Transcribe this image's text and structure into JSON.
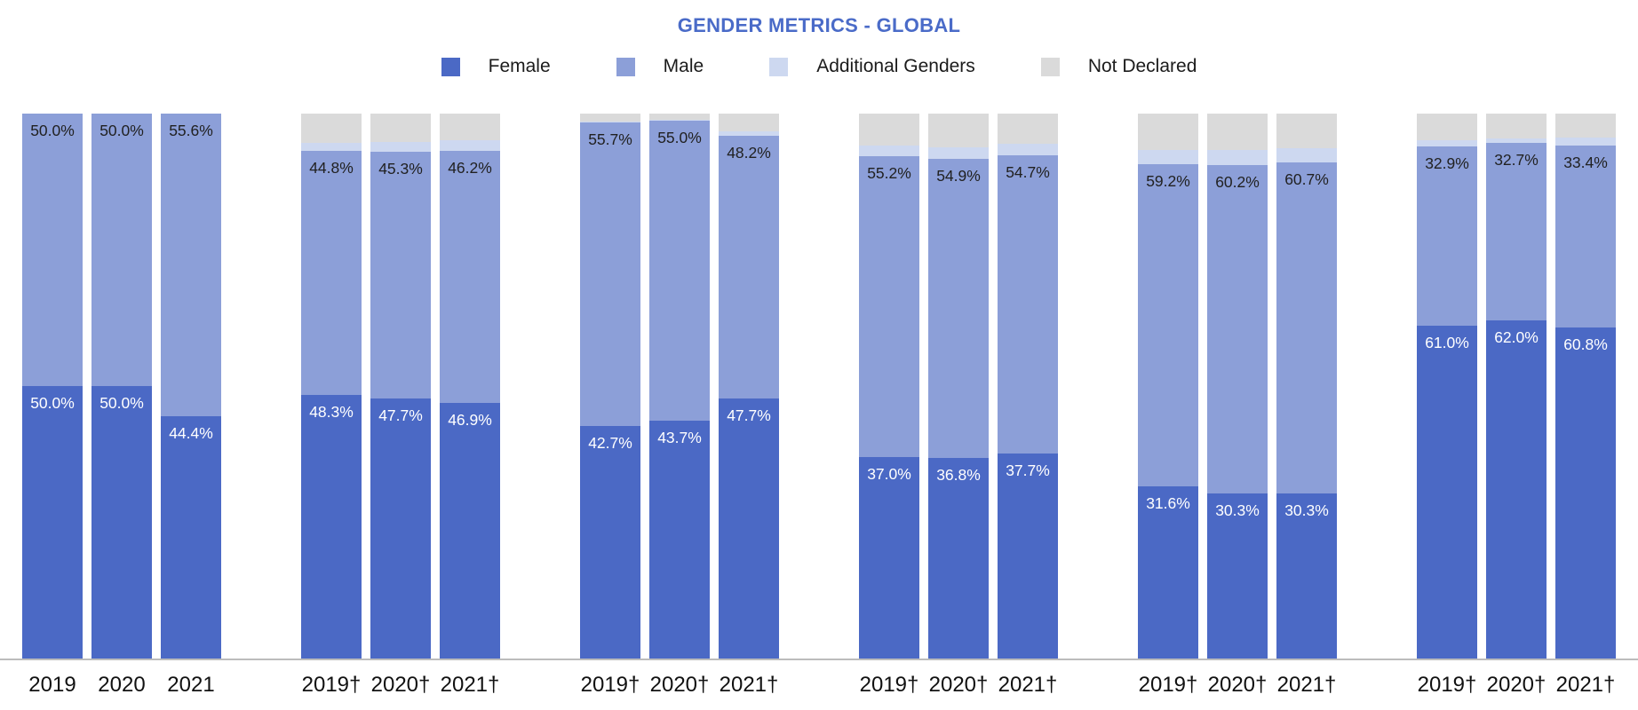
{
  "chart_data": {
    "type": "bar",
    "variant": "stacked-100-percent",
    "title": "GENDER METRICS - GLOBAL",
    "title_color": "#4a6bc8",
    "legend_position": "top",
    "grid": false,
    "ylim": [
      0,
      100
    ],
    "unit": "%",
    "axis_line_color": "#bcbcbc",
    "stack_order_bottom_to_top": [
      "female",
      "male",
      "additional",
      "not_declared"
    ],
    "labeled_series": [
      "female",
      "male"
    ],
    "label_text_colors": {
      "female": "#ffffff",
      "male": "#212121"
    },
    "legend": [
      {
        "key": "female",
        "label": "Female",
        "color": "#4b69c5"
      },
      {
        "key": "male",
        "label": "Male",
        "color": "#8c9fd8"
      },
      {
        "key": "additional",
        "label": "Additional Genders",
        "color": "#cdd8f0"
      },
      {
        "key": "not_declared",
        "label": "Not Declared",
        "color": "#dadada"
      }
    ],
    "groups": [
      {
        "bars": [
          {
            "label": "2019",
            "female": 50.0,
            "male": 50.0,
            "additional": 0.0,
            "not_declared": 0.0
          },
          {
            "label": "2020",
            "female": 50.0,
            "male": 50.0,
            "additional": 0.0,
            "not_declared": 0.0
          },
          {
            "label": "2021",
            "female": 44.4,
            "male": 55.6,
            "additional": 0.0,
            "not_declared": 0.0
          }
        ]
      },
      {
        "bars": [
          {
            "label": "2019†",
            "female": 48.3,
            "male": 44.8,
            "additional": 1.6,
            "not_declared": 5.3
          },
          {
            "label": "2020†",
            "female": 47.7,
            "male": 45.3,
            "additional": 1.8,
            "not_declared": 5.2
          },
          {
            "label": "2021†",
            "female": 46.9,
            "male": 46.2,
            "additional": 2.0,
            "not_declared": 4.9
          }
        ]
      },
      {
        "bars": [
          {
            "label": "2019†",
            "female": 42.7,
            "male": 55.7,
            "additional": 0.2,
            "not_declared": 1.4
          },
          {
            "label": "2020†",
            "female": 43.7,
            "male": 55.0,
            "additional": 0.2,
            "not_declared": 1.1
          },
          {
            "label": "2021†",
            "female": 47.7,
            "male": 48.2,
            "additional": 0.8,
            "not_declared": 3.3
          }
        ]
      },
      {
        "bars": [
          {
            "label": "2019†",
            "female": 37.0,
            "male": 55.2,
            "additional": 1.9,
            "not_declared": 5.9
          },
          {
            "label": "2020†",
            "female": 36.8,
            "male": 54.9,
            "additional": 2.1,
            "not_declared": 6.2
          },
          {
            "label": "2021†",
            "female": 37.7,
            "male": 54.7,
            "additional": 2.0,
            "not_declared": 5.6
          }
        ]
      },
      {
        "bars": [
          {
            "label": "2019†",
            "female": 31.6,
            "male": 59.2,
            "additional": 2.6,
            "not_declared": 6.6
          },
          {
            "label": "2020†",
            "female": 30.3,
            "male": 60.2,
            "additional": 2.8,
            "not_declared": 6.7
          },
          {
            "label": "2021†",
            "female": 30.3,
            "male": 60.7,
            "additional": 2.7,
            "not_declared": 6.3
          }
        ]
      },
      {
        "bars": [
          {
            "label": "2019†",
            "female": 61.0,
            "male": 32.9,
            "additional": 1.2,
            "not_declared": 4.9
          },
          {
            "label": "2020†",
            "female": 62.0,
            "male": 32.7,
            "additional": 0.8,
            "not_declared": 4.5
          },
          {
            "label": "2021†",
            "female": 60.8,
            "male": 33.4,
            "additional": 1.4,
            "not_declared": 4.4
          }
        ]
      }
    ]
  }
}
